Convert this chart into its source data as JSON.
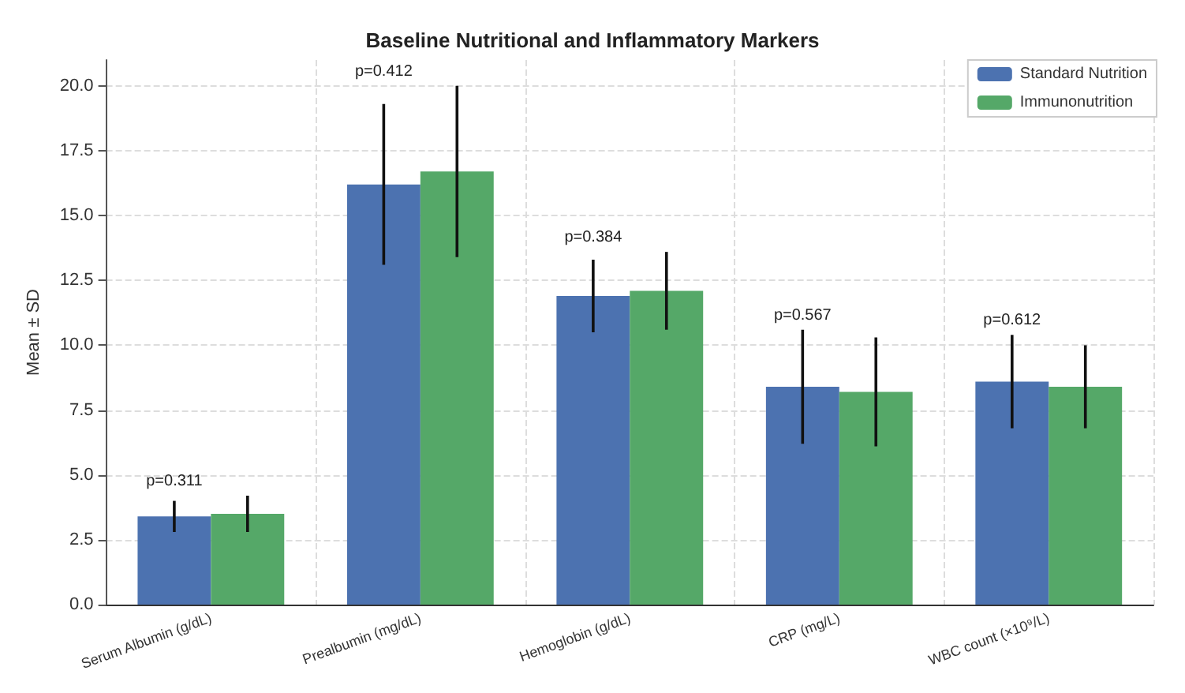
{
  "chart_data": {
    "type": "bar",
    "title": "Baseline Nutritional and Inflammatory Markers",
    "ylabel": "Mean ± SD",
    "categories": [
      "Serum Albumin (g/dL)",
      "Prealbumin (mg/dL)",
      "Hemoglobin (g/dL)",
      "CRP (mg/L)",
      "WBC count (×10⁹/L)"
    ],
    "series": [
      {
        "name": "Standard Nutrition",
        "color": "#4c72b0",
        "values": [
          3.4,
          16.2,
          11.9,
          8.4,
          8.6
        ],
        "errors": [
          0.6,
          3.1,
          1.4,
          2.2,
          1.8
        ]
      },
      {
        "name": "Immunonutrition",
        "color": "#55a868",
        "values": [
          3.5,
          16.7,
          12.1,
          8.2,
          8.4
        ],
        "errors": [
          0.7,
          3.3,
          1.5,
          2.1,
          1.6
        ]
      }
    ],
    "annotations": [
      "p=0.311",
      "p=0.412",
      "p=0.384",
      "p=0.567",
      "p=0.612"
    ],
    "ylim": [
      0,
      21
    ],
    "yticks": [
      {
        "value": 0,
        "label": "0.0"
      },
      2.5,
      {
        "value": 5,
        "label": "5.0"
      },
      7.5,
      {
        "value": 10,
        "label": "10.0"
      },
      12.5,
      {
        "value": 15,
        "label": "15.0"
      },
      17.5,
      {
        "value": 20,
        "label": "20.0"
      }
    ],
    "grid": true,
    "legend": "top right"
  }
}
